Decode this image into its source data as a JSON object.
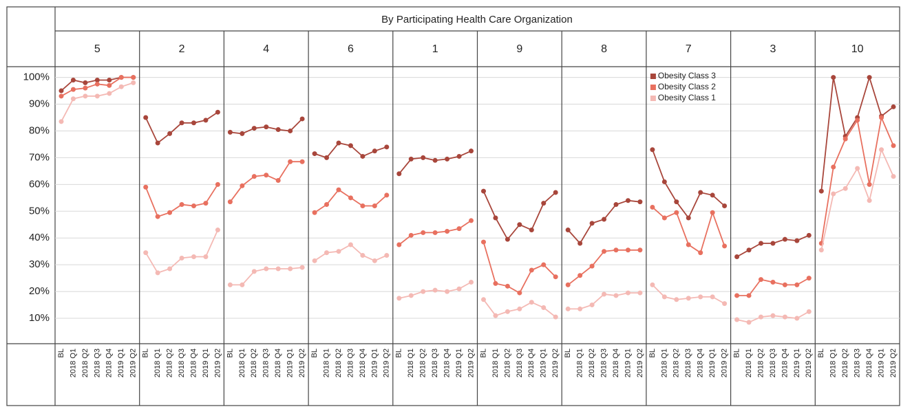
{
  "chart_data": {
    "type": "line",
    "title": "By Participating Health Care Organization",
    "categories": [
      "BL",
      "2018 Q1",
      "2018 Q2",
      "2018 Q3",
      "2018 Q4",
      "2019 Q1",
      "2019 Q2"
    ],
    "panels": [
      "5",
      "2",
      "4",
      "6",
      "1",
      "9",
      "8",
      "7",
      "3",
      "10"
    ],
    "series": [
      {
        "name": "Obesity Class 3",
        "color": "#a8463b",
        "values": [
          [
            95,
            99,
            98,
            99,
            99,
            100,
            100
          ],
          [
            85,
            75.5,
            79,
            83,
            83,
            84,
            87
          ],
          [
            79.5,
            79,
            81,
            81.5,
            80.5,
            80,
            84.5
          ],
          [
            71.5,
            70,
            75.5,
            74.5,
            70.5,
            72.5,
            74
          ],
          [
            64,
            69.5,
            70,
            69,
            69.5,
            70.5,
            72.5
          ],
          [
            57.5,
            47.5,
            39.5,
            45,
            43,
            53,
            57
          ],
          [
            43,
            38,
            45.5,
            47,
            52.5,
            54,
            53.5
          ],
          [
            73,
            61,
            53.5,
            47.5,
            57,
            56,
            52
          ],
          [
            33,
            35.5,
            38,
            38,
            39.5,
            39,
            41
          ],
          [
            57.5,
            100,
            78,
            85,
            100,
            85.5,
            89
          ]
        ]
      },
      {
        "name": "Obesity Class 2",
        "color": "#e8705f",
        "values": [
          [
            93,
            95.5,
            96,
            97.5,
            97,
            100,
            100
          ],
          [
            59,
            48,
            49.5,
            52.5,
            52,
            53,
            60
          ],
          [
            53.5,
            59.5,
            63,
            63.5,
            61.5,
            68.5,
            68.5
          ],
          [
            49.5,
            52.5,
            58,
            55,
            52,
            52,
            56
          ],
          [
            37.5,
            41,
            42,
            42,
            42.5,
            43.5,
            46.5
          ],
          [
            38.5,
            23,
            22,
            19.5,
            28,
            30,
            25.5
          ],
          [
            22.5,
            26,
            29.5,
            35,
            35.5,
            35.5,
            35.5
          ],
          [
            51.5,
            47.5,
            49.5,
            37.5,
            34.5,
            49.5,
            37
          ],
          [
            18.5,
            18.5,
            24.5,
            23.5,
            22.5,
            22.5,
            25
          ],
          [
            38,
            66.5,
            77,
            84,
            60,
            85,
            74.5
          ]
        ]
      },
      {
        "name": "Obesity Class 1",
        "color": "#f4b9b4",
        "values": [
          [
            83.5,
            92,
            93,
            93,
            94,
            96.5,
            98
          ],
          [
            34.5,
            27,
            28.5,
            32.5,
            33,
            33,
            43
          ],
          [
            22.5,
            22.5,
            27.5,
            28.5,
            28.5,
            28.5,
            29
          ],
          [
            31.5,
            34.5,
            35,
            37.5,
            33.5,
            31.5,
            33.5
          ],
          [
            17.5,
            18.5,
            20,
            20.5,
            20,
            21,
            23.5
          ],
          [
            17,
            11,
            12.5,
            13.5,
            16,
            14,
            10.5
          ],
          [
            13.5,
            13.5,
            15,
            19,
            18.5,
            19.5,
            19.5
          ],
          [
            22.5,
            18,
            17,
            17.5,
            18,
            18,
            15.5
          ],
          [
            9.5,
            8.5,
            10.5,
            11,
            10.5,
            10,
            12.5
          ],
          [
            35.5,
            56.5,
            58.5,
            66,
            54,
            73,
            63
          ]
        ]
      }
    ],
    "ylim": [
      0,
      104
    ],
    "yticks": [
      {
        "value": 10,
        "label": "10%"
      },
      {
        "value": 20,
        "label": "20%"
      },
      {
        "value": 30,
        "label": "30%"
      },
      {
        "value": 40,
        "label": "40%"
      },
      {
        "value": 50,
        "label": "50%"
      },
      {
        "value": 60,
        "label": "60%"
      },
      {
        "value": 70,
        "label": "70%"
      },
      {
        "value": 80,
        "label": "80%"
      },
      {
        "value": 90,
        "label": "90%"
      },
      {
        "value": 100,
        "label": "100%"
      }
    ],
    "grid": true,
    "legend": "top-left"
  }
}
